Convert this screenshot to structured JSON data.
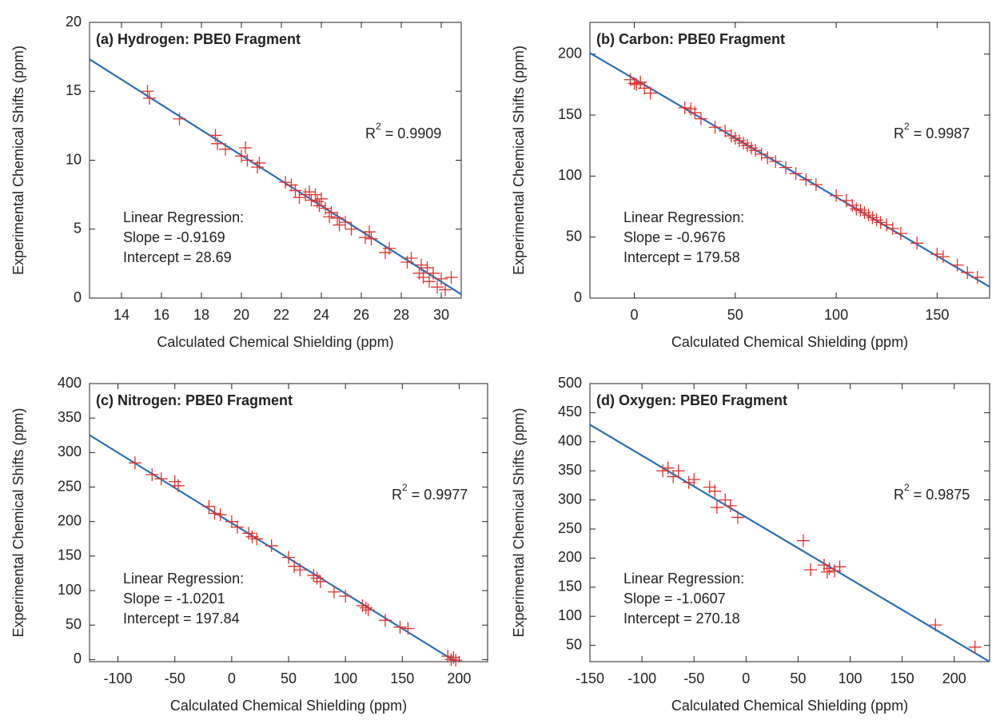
{
  "chart_data": [
    {
      "type": "scatter",
      "title": "(a) Hydrogen: PBE0 Fragment",
      "xlabel": "Calculated Chemical Shielding (ppm)",
      "ylabel": "Experimental Chemical Shifts (ppm)",
      "r2": {
        "base": "R",
        "sup": "2",
        "rest": "= 0.9909"
      },
      "regression": [
        "Linear Regression:",
        "Slope = -0.9169",
        "Intercept = 28.69"
      ],
      "xlim": [
        12.4,
        31
      ],
      "ylim": [
        0,
        20
      ],
      "xticks": [
        14,
        16,
        18,
        20,
        22,
        24,
        26,
        28,
        30
      ],
      "yticks": [
        0,
        5,
        10,
        15,
        20
      ],
      "color": "#e0312d",
      "x": [
        15.3,
        15.4,
        16.9,
        18.7,
        18.8,
        19.2,
        20.0,
        20.2,
        20.3,
        20.9,
        20.8,
        22.2,
        22.5,
        22.7,
        22.9,
        23.2,
        23.4,
        23.5,
        23.7,
        23.8,
        23.9,
        24.0,
        24.2,
        24.4,
        24.5,
        24.8,
        24.9,
        25.2,
        25.5,
        26.2,
        26.4,
        26.5,
        27.2,
        27.4,
        28.3,
        28.5,
        28.9,
        29.0,
        29.1,
        29.3,
        29.4,
        29.6,
        29.8,
        30.0,
        30.2,
        30.5
      ],
      "values": [
        15.0,
        14.5,
        13.0,
        11.8,
        11.2,
        10.8,
        10.3,
        10.9,
        10.0,
        9.8,
        9.5,
        8.4,
        8.2,
        7.8,
        7.3,
        7.5,
        7.7,
        7.1,
        7.5,
        7.0,
        6.7,
        7.2,
        6.5,
        5.9,
        6.2,
        5.8,
        5.3,
        5.5,
        5.0,
        4.4,
        4.8,
        4.3,
        3.3,
        3.6,
        2.6,
        2.9,
        1.8,
        2.4,
        1.5,
        2.2,
        1.2,
        1.8,
        0.8,
        1.4,
        0.6,
        1.5
      ],
      "fit": {
        "x": [
          12.4,
          31
        ],
        "values": [
          17.32,
          0.27
        ],
        "color": "#2a6fb5"
      }
    },
    {
      "type": "scatter",
      "title": "(b) Carbon: PBE0 Fragment",
      "xlabel": "Calculated Chemical Shielding (ppm)",
      "ylabel": "Experimental Chemical Shifts (ppm)",
      "r2": {
        "base": "R",
        "sup": "2",
        "rest": "= 0.9987"
      },
      "regression": [
        "Linear Regression:",
        "Slope = -0.9676",
        "Intercept = 179.58"
      ],
      "xlim": [
        -22,
        176
      ],
      "ylim": [
        0,
        226
      ],
      "xticks": [
        0,
        50,
        100,
        150
      ],
      "yticks": [
        0,
        50,
        100,
        150,
        200
      ],
      "color": "#e0312d",
      "x": [
        -2,
        0,
        1,
        3,
        5,
        8,
        25,
        28,
        30,
        33,
        40,
        45,
        48,
        50,
        52,
        54,
        56,
        58,
        60,
        63,
        66,
        70,
        75,
        80,
        85,
        90,
        100,
        105,
        108,
        110,
        112,
        114,
        116,
        118,
        120,
        122,
        125,
        128,
        132,
        140,
        150,
        153,
        160,
        165,
        170
      ],
      "values": [
        179,
        176,
        175,
        177,
        172,
        168,
        156,
        155,
        152,
        147,
        140,
        137,
        133,
        131,
        129,
        127,
        125,
        123,
        121,
        118,
        115,
        112,
        107,
        102,
        97,
        93,
        84,
        80,
        76,
        73,
        72,
        70,
        68,
        66,
        64,
        62,
        60,
        57,
        53,
        45,
        36,
        34,
        27,
        21,
        17
      ],
      "fit": {
        "x": [
          -22,
          176
        ],
        "values": [
          200.87,
          9.28
        ],
        "color": "#2a6fb5"
      }
    },
    {
      "type": "scatter",
      "title": "(c) Nitrogen: PBE0 Fragment",
      "xlabel": "Calculated Chemical Shielding (ppm)",
      "ylabel": "Experimental Chemical Shifts (ppm)",
      "r2": {
        "base": "R",
        "sup": "2",
        "rest": "= 0.9977"
      },
      "regression": [
        "Linear Regression:",
        "Slope = -1.0201",
        "Intercept = 197.84"
      ],
      "xlim": [
        -125,
        225
      ],
      "ylim": [
        -3,
        400
      ],
      "xticks": [
        -100,
        -50,
        0,
        50,
        100,
        150,
        200
      ],
      "yticks": [
        0,
        50,
        100,
        150,
        200,
        250,
        300,
        350,
        400
      ],
      "color": "#e0312d",
      "x": [
        -85,
        -70,
        -62,
        -50,
        -47,
        -20,
        -15,
        -10,
        0,
        5,
        15,
        18,
        22,
        35,
        50,
        55,
        60,
        72,
        75,
        78,
        90,
        100,
        115,
        118,
        120,
        135,
        148,
        155,
        190,
        193,
        195,
        197
      ],
      "values": [
        285,
        268,
        262,
        258,
        252,
        222,
        212,
        210,
        200,
        192,
        183,
        178,
        175,
        165,
        148,
        135,
        130,
        122,
        118,
        113,
        98,
        92,
        78,
        75,
        72,
        57,
        47,
        45,
        5,
        0,
        3,
        -1
      ],
      "fit": {
        "x": [
          -125,
          197
        ],
        "values": [
          325.35,
          -3.12
        ],
        "color": "#2a6fb5"
      }
    },
    {
      "type": "scatter",
      "title": "(d) Oxygen: PBE0 Fragment",
      "xlabel": "Calculated Chemical Shielding (ppm)",
      "ylabel": "Experimental Chemical Shifts (ppm)",
      "r2": {
        "base": "R",
        "sup": "2",
        "rest": "= 0.9875"
      },
      "regression": [
        "Linear Regression:",
        "Slope = -1.0607",
        "Intercept = 270.18"
      ],
      "xlim": [
        -150,
        234
      ],
      "ylim": [
        22,
        500
      ],
      "xticks": [
        -150,
        -100,
        -50,
        0,
        50,
        100,
        150,
        200
      ],
      "yticks": [
        50,
        100,
        150,
        200,
        250,
        300,
        350,
        400,
        450,
        500
      ],
      "color": "#e0312d",
      "x": [
        -80,
        -75,
        -70,
        -65,
        -55,
        -50,
        -35,
        -30,
        -28,
        -20,
        -15,
        -8,
        55,
        62,
        75,
        78,
        80,
        85,
        90,
        182,
        220
      ],
      "values": [
        350,
        355,
        340,
        350,
        330,
        335,
        322,
        315,
        287,
        300,
        290,
        270,
        230,
        180,
        188,
        176,
        182,
        178,
        185,
        85,
        47
      ],
      "fit": {
        "x": [
          -150,
          234
        ],
        "values": [
          429.29,
          21.98
        ],
        "color": "#2a6fb5"
      }
    }
  ]
}
